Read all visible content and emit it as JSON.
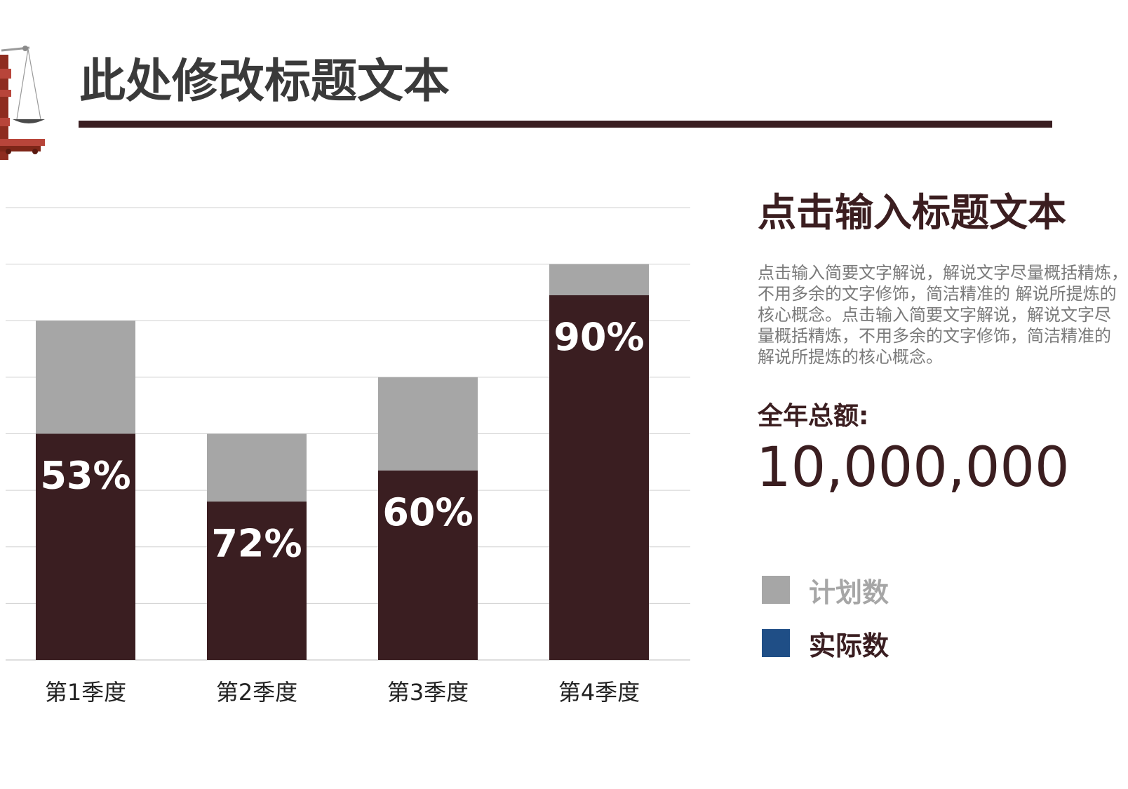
{
  "header": {
    "title": "此处修改标题文本"
  },
  "theme": {
    "accent": "#3a1e21",
    "planned_color": "#a6a6a6",
    "legend_actual_color": "#1f4e86",
    "grid_color": "#d0d0d0",
    "icon": "scales-of-justice-icon"
  },
  "chart_data": {
    "type": "bar",
    "categories": [
      "第1季度",
      "第2季度",
      "第3季度",
      "第4季度"
    ],
    "ylim": [
      0,
      8
    ],
    "grid": true,
    "series": [
      {
        "name": "计划数",
        "values": [
          6,
          4,
          5,
          7
        ]
      },
      {
        "name": "实际数",
        "values": [
          4,
          2.8,
          3.35,
          6.45
        ]
      }
    ],
    "data_labels": [
      "53%",
      "72%",
      "60%",
      "90%"
    ]
  },
  "side": {
    "title": "点击输入标题文本",
    "description_lines": [
      "点击输入简要文字解说，解说文字尽量概括精炼，",
      "不用多余的文字修饰，简洁精准的 解说所提炼的",
      "核心概念。点击输入简要文字解说，解说文字尽",
      "量概括精炼，不用多余的文字修饰，简洁精准的",
      "解说所提炼的核心概念。"
    ],
    "total_label": "全年总额:",
    "total_value": "10,000,000"
  },
  "legend": {
    "planned_label": "计划数",
    "actual_label": "实际数"
  }
}
